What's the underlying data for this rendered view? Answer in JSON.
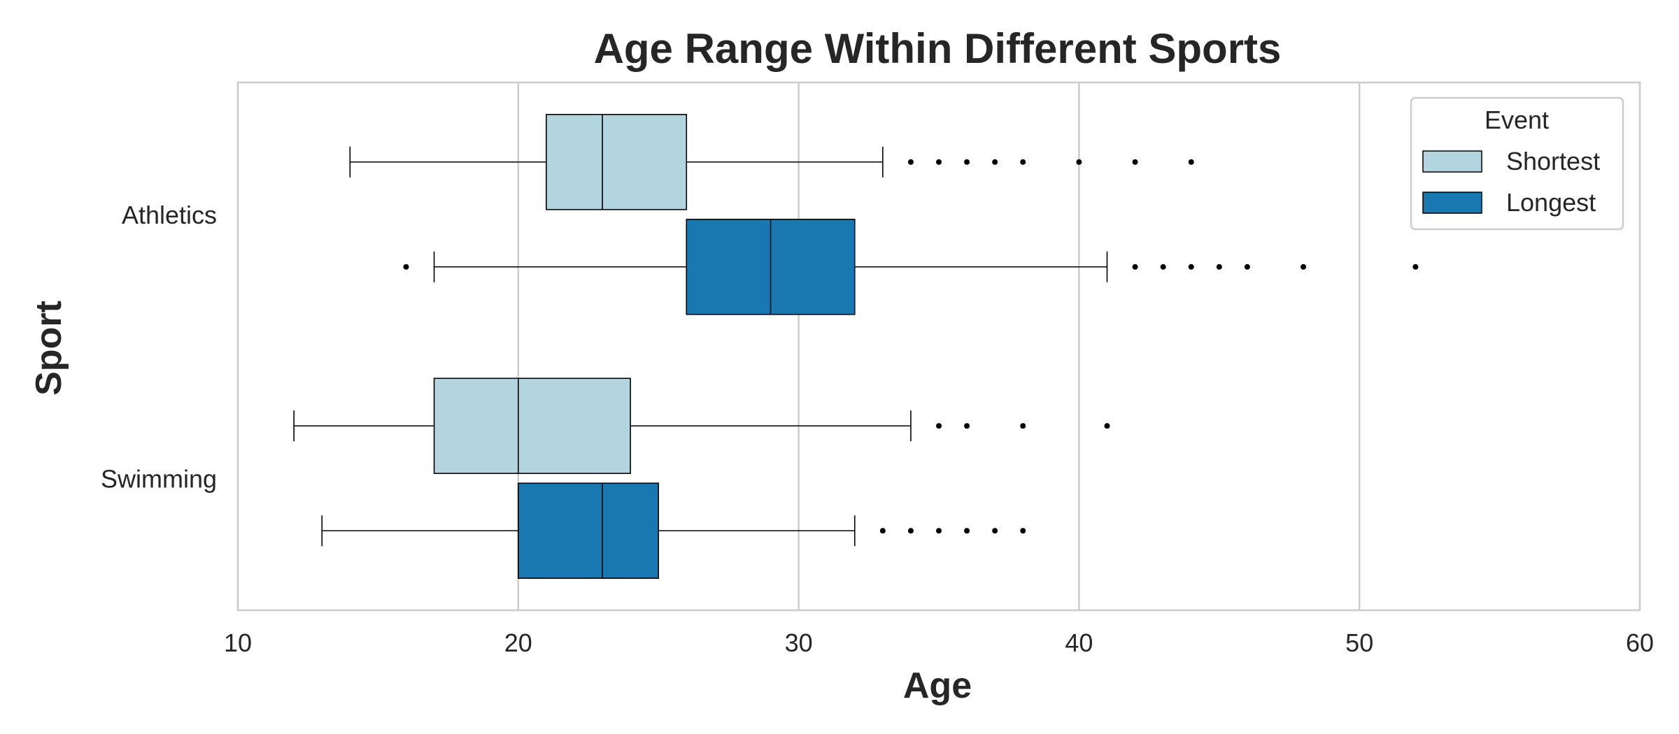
{
  "chart_data": {
    "type": "boxplot",
    "orientation": "horizontal",
    "title": "Age Range Within Different Sports",
    "xlabel": "Age",
    "ylabel": "Sport",
    "xlim": [
      10,
      60
    ],
    "xticks": [
      10,
      20,
      30,
      40,
      50,
      60
    ],
    "grid": "vertical",
    "categories": [
      "Athletics",
      "Swimming"
    ],
    "legend": {
      "title": "Event",
      "placement": "top-right",
      "entries": [
        {
          "name": "Shortest",
          "color": "#b3d5e0"
        },
        {
          "name": "Longest",
          "color": "#1a78b0"
        }
      ]
    },
    "series": [
      {
        "name": "Shortest",
        "color": "#b3d5e0",
        "boxes": [
          {
            "category": "Athletics",
            "whisker_low": 14,
            "q1": 21,
            "median": 23,
            "q3": 26,
            "whisker_high": 33,
            "outliers": [
              34,
              35,
              36,
              37,
              38,
              40,
              42,
              44
            ]
          },
          {
            "category": "Swimming",
            "whisker_low": 12,
            "q1": 17,
            "median": 20,
            "q3": 24,
            "whisker_high": 34,
            "outliers": [
              35,
              36,
              38,
              41
            ]
          }
        ]
      },
      {
        "name": "Longest",
        "color": "#1a78b0",
        "boxes": [
          {
            "category": "Athletics",
            "whisker_low": 17,
            "q1": 26,
            "median": 29,
            "q3": 32,
            "whisker_high": 41,
            "outliers": [
              16,
              42,
              43,
              44,
              45,
              46,
              48,
              52
            ]
          },
          {
            "category": "Swimming",
            "whisker_low": 13,
            "q1": 20,
            "median": 23,
            "q3": 25,
            "whisker_high": 32,
            "outliers": [
              33,
              34,
              35,
              36,
              37,
              38
            ]
          }
        ]
      }
    ]
  }
}
